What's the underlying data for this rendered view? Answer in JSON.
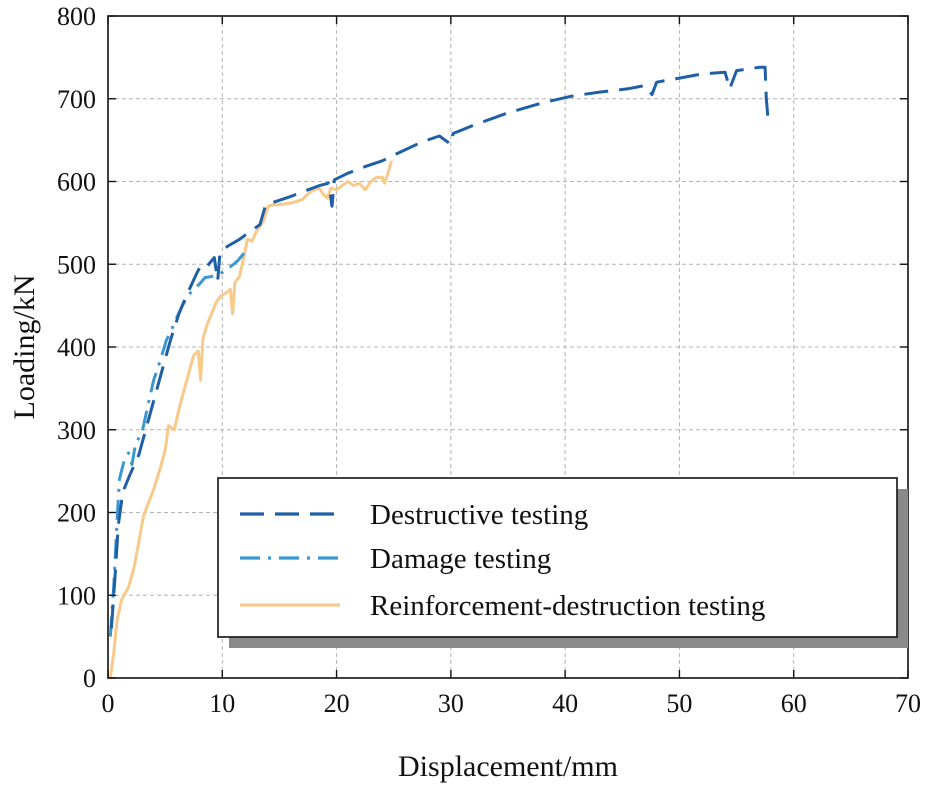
{
  "chart_data": {
    "type": "line",
    "title": "",
    "xlabel": "Displacement/mm",
    "ylabel": "Loading/kN",
    "xlim": [
      0,
      70
    ],
    "ylim": [
      0,
      800
    ],
    "xticks": [
      0,
      10,
      20,
      30,
      40,
      50,
      60,
      70
    ],
    "yticks": [
      0,
      100,
      200,
      300,
      400,
      500,
      600,
      700,
      800
    ],
    "grid": true,
    "legend_position": "lower-right",
    "series": [
      {
        "name": "Destructive testing",
        "style": "dashed",
        "color": "#1f5fa6",
        "points": [
          [
            0.3,
            60
          ],
          [
            0.6,
            120
          ],
          [
            0.9,
            185
          ],
          [
            1.3,
            225
          ],
          [
            1.9,
            245
          ],
          [
            2.7,
            270
          ],
          [
            3.3,
            300
          ],
          [
            4.2,
            345
          ],
          [
            5.0,
            385
          ],
          [
            5.5,
            410
          ],
          [
            6.2,
            440
          ],
          [
            6.8,
            460
          ],
          [
            7.3,
            475
          ],
          [
            7.8,
            490
          ],
          [
            8.2,
            500
          ],
          [
            8.7,
            498
          ],
          [
            9.3,
            508
          ],
          [
            9.6,
            480
          ],
          [
            9.8,
            515
          ],
          [
            10.5,
            522
          ],
          [
            11.5,
            530
          ],
          [
            12.5,
            540
          ],
          [
            13.3,
            548
          ],
          [
            13.8,
            572
          ],
          [
            14.5,
            575
          ],
          [
            16.0,
            582
          ],
          [
            17.5,
            590
          ],
          [
            18.5,
            595
          ],
          [
            19.3,
            598
          ],
          [
            19.6,
            570
          ],
          [
            19.8,
            602
          ],
          [
            21.0,
            610
          ],
          [
            22.5,
            618
          ],
          [
            24.0,
            625
          ],
          [
            25.5,
            635
          ],
          [
            27.5,
            648
          ],
          [
            29.0,
            655
          ],
          [
            30.0,
            645
          ],
          [
            30.2,
            658
          ],
          [
            32.0,
            668
          ],
          [
            35.0,
            683
          ],
          [
            38.0,
            695
          ],
          [
            40.5,
            703
          ],
          [
            43.0,
            708
          ],
          [
            45.5,
            712
          ],
          [
            47.0,
            716
          ],
          [
            47.6,
            705
          ],
          [
            48.0,
            720
          ],
          [
            50.0,
            725
          ],
          [
            52.0,
            730
          ],
          [
            54.0,
            732
          ],
          [
            54.4,
            712
          ],
          [
            55.0,
            734
          ],
          [
            56.0,
            736
          ],
          [
            57.0,
            738
          ],
          [
            57.5,
            738
          ],
          [
            57.6,
            700
          ],
          [
            57.8,
            668
          ]
        ]
      },
      {
        "name": "Damage testing",
        "style": "dashdot",
        "color": "#3a97cf",
        "points": [
          [
            0.2,
            50
          ],
          [
            0.5,
            110
          ],
          [
            0.8,
            190
          ],
          [
            1.0,
            240
          ],
          [
            1.4,
            262
          ],
          [
            1.8,
            272
          ],
          [
            2.1,
            258
          ],
          [
            2.4,
            282
          ],
          [
            3.0,
            298
          ],
          [
            3.5,
            330
          ],
          [
            4.0,
            360
          ],
          [
            4.6,
            385
          ],
          [
            5.1,
            408
          ],
          [
            5.7,
            425
          ],
          [
            6.1,
            438
          ],
          [
            6.5,
            450
          ],
          [
            7.0,
            462
          ],
          [
            7.5,
            470
          ],
          [
            8.0,
            476
          ],
          [
            8.5,
            484
          ],
          [
            9.0,
            485
          ],
          [
            9.5,
            488
          ],
          [
            10.0,
            490
          ],
          [
            10.5,
            495
          ],
          [
            11.0,
            500
          ],
          [
            11.4,
            505
          ],
          [
            11.7,
            510
          ],
          [
            12.0,
            515
          ]
        ]
      },
      {
        "name": "Reinforcement-destruction testing",
        "style": "solid",
        "color": "#f7c98a",
        "points": [
          [
            0.2,
            0
          ],
          [
            0.5,
            30
          ],
          [
            0.8,
            70
          ],
          [
            1.2,
            95
          ],
          [
            1.8,
            110
          ],
          [
            2.3,
            135
          ],
          [
            2.7,
            165
          ],
          [
            3.1,
            195
          ],
          [
            3.5,
            210
          ],
          [
            4.0,
            228
          ],
          [
            4.6,
            255
          ],
          [
            5.0,
            275
          ],
          [
            5.3,
            305
          ],
          [
            5.8,
            300
          ],
          [
            6.3,
            330
          ],
          [
            6.8,
            355
          ],
          [
            7.1,
            370
          ],
          [
            7.5,
            390
          ],
          [
            7.9,
            395
          ],
          [
            8.1,
            360
          ],
          [
            8.3,
            410
          ],
          [
            8.7,
            428
          ],
          [
            9.2,
            445
          ],
          [
            9.5,
            455
          ],
          [
            9.9,
            462
          ],
          [
            10.3,
            465
          ],
          [
            10.7,
            470
          ],
          [
            10.9,
            440
          ],
          [
            11.1,
            478
          ],
          [
            11.5,
            485
          ],
          [
            11.9,
            510
          ],
          [
            12.2,
            530
          ],
          [
            12.6,
            528
          ],
          [
            13.0,
            540
          ],
          [
            13.6,
            552
          ],
          [
            14.0,
            570
          ],
          [
            14.5,
            572
          ],
          [
            15.0,
            572
          ],
          [
            16.0,
            574
          ],
          [
            17.0,
            578
          ],
          [
            17.5,
            585
          ],
          [
            18.0,
            590
          ],
          [
            18.5,
            592
          ],
          [
            18.8,
            585
          ],
          [
            19.2,
            580
          ],
          [
            19.5,
            592
          ],
          [
            20.0,
            590
          ],
          [
            20.5,
            595
          ],
          [
            21.0,
            600
          ],
          [
            21.5,
            595
          ],
          [
            22.0,
            598
          ],
          [
            22.5,
            590
          ],
          [
            23.0,
            600
          ],
          [
            23.5,
            605
          ],
          [
            24.0,
            605
          ],
          [
            24.2,
            598
          ],
          [
            24.5,
            610
          ],
          [
            24.8,
            625
          ]
        ]
      }
    ]
  }
}
